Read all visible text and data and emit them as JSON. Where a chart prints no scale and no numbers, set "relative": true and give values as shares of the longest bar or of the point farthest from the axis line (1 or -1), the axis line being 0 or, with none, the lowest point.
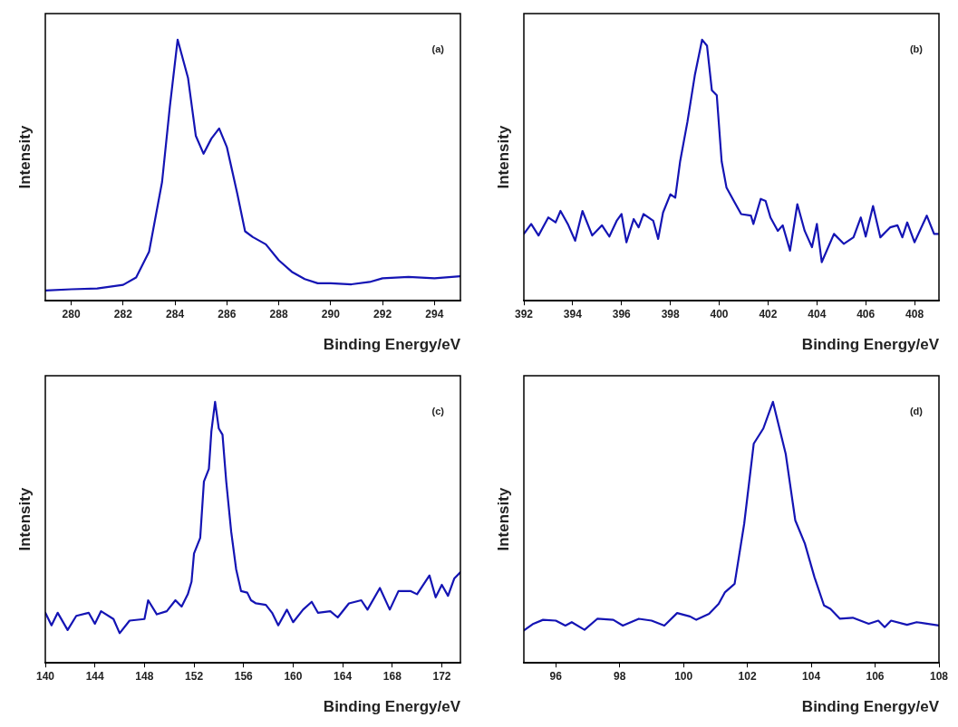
{
  "chart_data": [
    {
      "type": "line",
      "relative": true,
      "xlabel": "Binding Energy/eV",
      "ylabel": "Intensity",
      "annotations": [
        "(a)"
      ],
      "xlim": [
        279,
        295
      ],
      "xticks": [
        280,
        282,
        284,
        286,
        288,
        290,
        292,
        294
      ],
      "marker": "none",
      "line_style": "solid",
      "series": [
        {
          "color": "#1414b4",
          "x": [
            279,
            280,
            281,
            282,
            282.5,
            283,
            283.5,
            283.8,
            284.1,
            284.5,
            284.8,
            285.1,
            285.4,
            285.7,
            286,
            286.4,
            286.7,
            287,
            287.5,
            288,
            288.5,
            289,
            289.5,
            290,
            290.8,
            291.5,
            292,
            293,
            294,
            295
          ],
          "values": [
            0.039,
            0.044,
            0.047,
            0.061,
            0.089,
            0.188,
            0.455,
            0.743,
            1,
            0.854,
            0.632,
            0.563,
            0.621,
            0.66,
            0.588,
            0.41,
            0.266,
            0.244,
            0.216,
            0.155,
            0.111,
            0.083,
            0.067,
            0.067,
            0.063,
            0.072,
            0.086,
            0.091,
            0.086,
            0.094
          ]
        }
      ]
    },
    {
      "type": "line",
      "relative": true,
      "xlabel": "Binding Energy/eV",
      "ylabel": "Intensity",
      "annotations": [
        "(b)"
      ],
      "xlim": [
        392,
        409
      ],
      "xticks": [
        392,
        394,
        396,
        398,
        400,
        402,
        404,
        406,
        408
      ],
      "marker": "none",
      "line_style": "solid",
      "series": [
        {
          "color": "#1414b4",
          "x": [
            392,
            392.3,
            392.6,
            393,
            393.3,
            393.5,
            393.8,
            394.1,
            394.4,
            394.8,
            395.2,
            395.5,
            395.8,
            396,
            396.2,
            396.5,
            396.7,
            396.9,
            397.3,
            397.5,
            397.7,
            398,
            398.2,
            398.4,
            398.7,
            399,
            399.3,
            399.5,
            399.7,
            399.9,
            400.1,
            400.3,
            400.6,
            400.9,
            401.3,
            401.4,
            401.7,
            401.9,
            402.1,
            402.4,
            402.6,
            402.9,
            403.2,
            403.5,
            403.8,
            404,
            404.2,
            404.7,
            405.1,
            405.5,
            405.8,
            406,
            406.3,
            406.6,
            407,
            407.3,
            407.5,
            407.7,
            408,
            408.5,
            408.8,
            409
          ],
          "values": [
            0.256,
            0.294,
            0.25,
            0.319,
            0.3,
            0.344,
            0.294,
            0.23,
            0.344,
            0.25,
            0.289,
            0.246,
            0.306,
            0.332,
            0.224,
            0.313,
            0.281,
            0.332,
            0.306,
            0.237,
            0.338,
            0.408,
            0.395,
            0.534,
            0.686,
            0.863,
            1,
            0.977,
            0.806,
            0.787,
            0.534,
            0.433,
            0.382,
            0.332,
            0.326,
            0.294,
            0.39,
            0.382,
            0.319,
            0.268,
            0.289,
            0.192,
            0.37,
            0.268,
            0.205,
            0.294,
            0.148,
            0.256,
            0.218,
            0.243,
            0.319,
            0.246,
            0.363,
            0.243,
            0.281,
            0.289,
            0.243,
            0.3,
            0.224,
            0.326,
            0.256,
            0.256
          ]
        }
      ]
    },
    {
      "type": "line",
      "relative": true,
      "xlabel": "Binding Energy/eV",
      "ylabel": "Intensity",
      "annotations": [
        "(c)"
      ],
      "xlim": [
        140,
        173.5
      ],
      "xticks": [
        140,
        144,
        148,
        152,
        156,
        160,
        164,
        168,
        172
      ],
      "marker": "none",
      "line_style": "solid",
      "series": [
        {
          "color": "#1414b4",
          "x": [
            140,
            140.5,
            141,
            141.8,
            142.5,
            143.5,
            144,
            144.5,
            145.5,
            146,
            146.8,
            148,
            148.3,
            149,
            149.8,
            150.5,
            151,
            151.5,
            151.8,
            152,
            152.5,
            152.8,
            153.2,
            153.4,
            153.7,
            154,
            154.3,
            154.6,
            155,
            155.4,
            155.8,
            156.3,
            156.6,
            157,
            157.8,
            158.3,
            158.8,
            159.5,
            160,
            160.8,
            161.5,
            162,
            163,
            163.6,
            164.5,
            165.5,
            166,
            167,
            167.8,
            168.5,
            169.5,
            170,
            171,
            171.5,
            172,
            172.5,
            173,
            173.5
          ],
          "values": [
            0.192,
            0.144,
            0.192,
            0.126,
            0.18,
            0.192,
            0.15,
            0.198,
            0.168,
            0.114,
            0.162,
            0.168,
            0.24,
            0.186,
            0.198,
            0.24,
            0.216,
            0.263,
            0.311,
            0.419,
            0.479,
            0.695,
            0.743,
            0.886,
            1,
            0.898,
            0.874,
            0.695,
            0.503,
            0.359,
            0.275,
            0.269,
            0.24,
            0.228,
            0.222,
            0.192,
            0.144,
            0.204,
            0.156,
            0.204,
            0.234,
            0.192,
            0.198,
            0.174,
            0.228,
            0.24,
            0.204,
            0.287,
            0.204,
            0.275,
            0.275,
            0.263,
            0.335,
            0.251,
            0.299,
            0.257,
            0.323,
            0.347
          ]
        }
      ]
    },
    {
      "type": "line",
      "relative": true,
      "xlabel": "Binding Energy/eV",
      "ylabel": "Intensity",
      "annotations": [
        "(d)"
      ],
      "xlim": [
        95,
        108
      ],
      "xticks": [
        96,
        98,
        100,
        102,
        104,
        106,
        108
      ],
      "marker": "none",
      "line_style": "solid",
      "series": [
        {
          "color": "#1414b4",
          "x": [
            95,
            95.3,
            95.6,
            96,
            96.3,
            96.5,
            96.9,
            97.3,
            97.8,
            98.1,
            98.6,
            99,
            99.4,
            99.8,
            100.2,
            100.4,
            100.8,
            101.1,
            101.3,
            101.6,
            101.9,
            102.2,
            102.5,
            102.8,
            103.2,
            103.5,
            103.8,
            104.1,
            104.4,
            104.6,
            104.9,
            105.3,
            105.8,
            106.1,
            106.3,
            106.5,
            107,
            107.3,
            108
          ],
          "values": [
            0.124,
            0.15,
            0.165,
            0.162,
            0.143,
            0.156,
            0.127,
            0.169,
            0.165,
            0.143,
            0.169,
            0.162,
            0.143,
            0.191,
            0.178,
            0.165,
            0.188,
            0.226,
            0.271,
            0.303,
            0.533,
            0.84,
            0.898,
            1,
            0.801,
            0.546,
            0.457,
            0.329,
            0.22,
            0.207,
            0.169,
            0.173,
            0.15,
            0.162,
            0.137,
            0.162,
            0.146,
            0.156,
            0.143
          ]
        }
      ]
    }
  ]
}
